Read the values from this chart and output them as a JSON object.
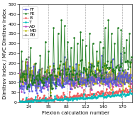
{
  "title": "",
  "xlabel": "Flexion calculation number",
  "ylabel": "Dimitrov index / MVC Dimitrov index",
  "xlim": [
    10,
    185
  ],
  "ylim": [
    0,
    500
  ],
  "yticks": [
    0,
    50,
    100,
    150,
    200,
    250,
    300,
    350,
    400,
    450,
    500
  ],
  "xticks": [
    24,
    55,
    83,
    112,
    140,
    170
  ],
  "vlines": [
    24,
    55,
    83,
    112,
    140,
    170
  ],
  "series": {
    "FF": {
      "color": "#5555dd",
      "marker": "s",
      "zorder": 5,
      "lw": 0.5
    },
    "FE": {
      "color": "#1a7a1a",
      "marker": "s",
      "zorder": 6,
      "lw": 0.5
    },
    "B": {
      "color": "#ee5555",
      "marker": "s",
      "zorder": 4,
      "lw": 0.5
    },
    "T": {
      "color": "#00bbbb",
      "marker": "s",
      "zorder": 4,
      "lw": 0.5
    },
    "AD": {
      "color": "#bb44bb",
      "marker": "s",
      "zorder": 4,
      "lw": 0.5
    },
    "MD": {
      "color": "#bbbb00",
      "marker": "s",
      "zorder": 4,
      "lw": 0.5
    },
    "PD": {
      "color": "#777777",
      "marker": "s",
      "zorder": 4,
      "lw": 0.5
    }
  },
  "legend_fontsize": 4.5,
  "tick_fontsize": 4.5,
  "label_fontsize": 5,
  "background_color": "#ffffff",
  "seed": 7,
  "n_points": 175
}
